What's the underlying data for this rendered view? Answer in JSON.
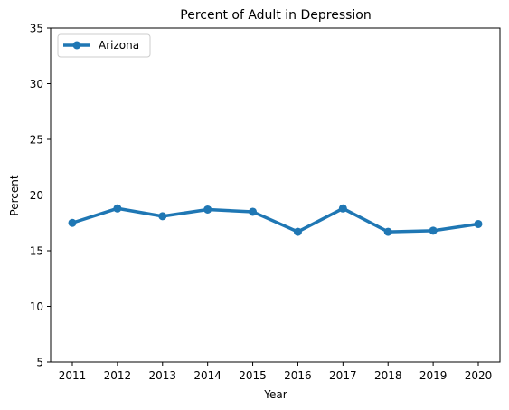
{
  "chart_data": {
    "type": "line",
    "title": "Percent of Adult in Depression",
    "xlabel": "Year",
    "ylabel": "Percent",
    "x": [
      2011,
      2012,
      2013,
      2014,
      2015,
      2016,
      2017,
      2018,
      2019,
      2020
    ],
    "x_tick_labels": [
      "2011",
      "2012",
      "2013",
      "2014",
      "2015",
      "2016",
      "2017",
      "2018",
      "2019",
      "2020"
    ],
    "ylim": [
      5,
      35
    ],
    "y_ticks": [
      5,
      10,
      15,
      20,
      25,
      30,
      35
    ],
    "y_tick_labels": [
      "5",
      "10",
      "15",
      "20",
      "25",
      "30",
      "35"
    ],
    "grid": false,
    "legend_position": "top-left",
    "series": [
      {
        "name": "Arizona",
        "color": "#1f77b4",
        "marker": "circle",
        "values": [
          17.5,
          18.8,
          18.1,
          18.7,
          18.5,
          16.7,
          18.8,
          16.7,
          16.8,
          17.4
        ]
      }
    ]
  }
}
